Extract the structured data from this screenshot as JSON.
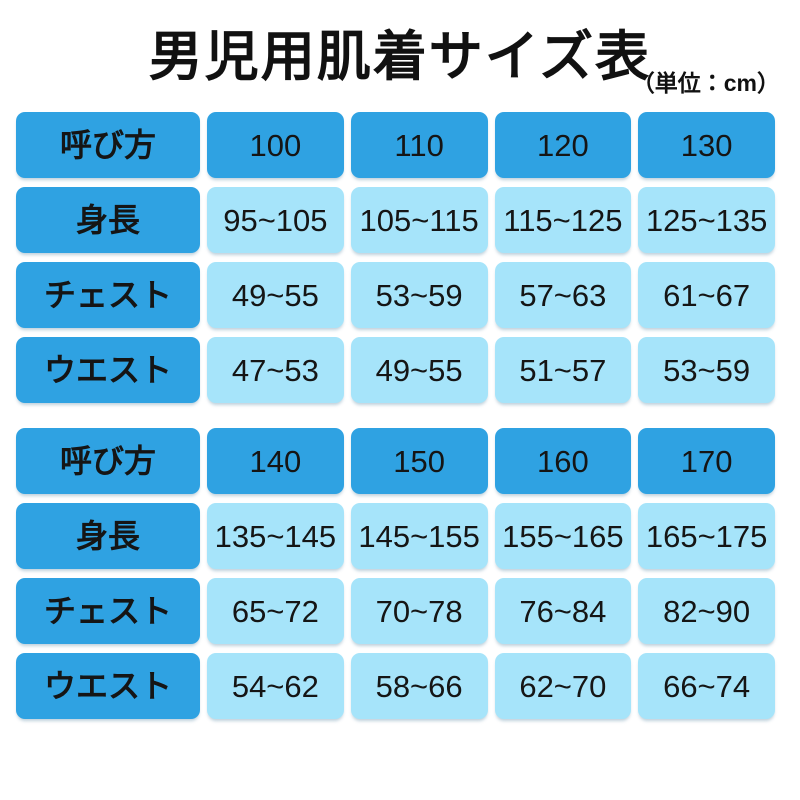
{
  "title": "男児用肌着サイズ表",
  "unit_note": "（単位：cm）",
  "colors": {
    "header_cell": "#2fa2e2",
    "value_cell": "#a6e4fa",
    "page_bg": "#ffffff",
    "text": "#151515"
  },
  "chart_data": {
    "type": "table",
    "title": "男児用肌着サイズ表",
    "unit": "cm",
    "row_header_labels": [
      "呼び方",
      "身長",
      "チェスト",
      "ウエスト"
    ],
    "sections": [
      {
        "rows": [
          {
            "label": "呼び方",
            "values": [
              "100",
              "110",
              "120",
              "130"
            ]
          },
          {
            "label": "身長",
            "values": [
              "95~105",
              "105~115",
              "115~125",
              "125~135"
            ]
          },
          {
            "label": "チェスト",
            "values": [
              "49~55",
              "53~59",
              "57~63",
              "61~67"
            ]
          },
          {
            "label": "ウエスト",
            "values": [
              "47~53",
              "49~55",
              "51~57",
              "53~59"
            ]
          }
        ]
      },
      {
        "rows": [
          {
            "label": "呼び方",
            "values": [
              "140",
              "150",
              "160",
              "170"
            ]
          },
          {
            "label": "身長",
            "values": [
              "135~145",
              "145~155",
              "155~165",
              "165~175"
            ]
          },
          {
            "label": "チェスト",
            "values": [
              "65~72",
              "70~78",
              "76~84",
              "82~90"
            ]
          },
          {
            "label": "ウエスト",
            "values": [
              "54~62",
              "58~66",
              "62~70",
              "66~74"
            ]
          }
        ]
      }
    ]
  }
}
